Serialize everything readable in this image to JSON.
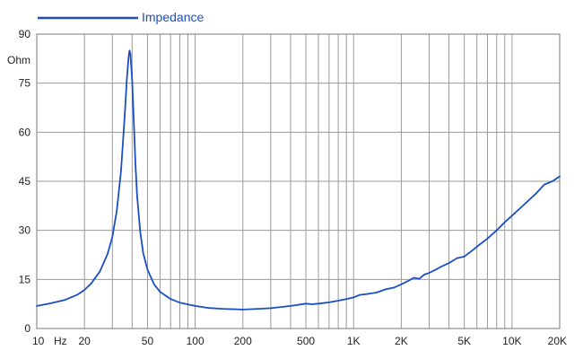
{
  "chart_data": {
    "type": "line",
    "title": "",
    "xlabel": "Hz",
    "ylabel": "Ohm",
    "x_scale": "log",
    "xlim": [
      10,
      20000
    ],
    "ylim": [
      0,
      90
    ],
    "grid": true,
    "legend_position": "top-left",
    "x_tick_labels": [
      {
        "value": 10,
        "label": "10"
      },
      {
        "value": 20,
        "label": "20"
      },
      {
        "value": 50,
        "label": "50"
      },
      {
        "value": 100,
        "label": "100"
      },
      {
        "value": 200,
        "label": "200"
      },
      {
        "value": 500,
        "label": "500"
      },
      {
        "value": 1000,
        "label": "1K"
      },
      {
        "value": 2000,
        "label": "2K"
      },
      {
        "value": 5000,
        "label": "5K"
      },
      {
        "value": 10000,
        "label": "10K"
      },
      {
        "value": 20000,
        "label": "20K"
      }
    ],
    "y_ticks": [
      0,
      15,
      30,
      45,
      60,
      75,
      90
    ],
    "series": [
      {
        "name": "Impedance",
        "color": "#1a4fc4",
        "x": [
          10,
          12,
          15,
          18,
          20,
          22,
          25,
          28,
          30,
          32,
          34,
          35,
          36,
          37,
          38,
          38.5,
          39,
          40,
          41,
          42,
          43,
          45,
          47,
          50,
          55,
          60,
          70,
          80,
          100,
          120,
          150,
          200,
          250,
          300,
          400,
          500,
          550,
          600,
          700,
          800,
          900,
          1000,
          1100,
          1200,
          1400,
          1600,
          1800,
          2000,
          2200,
          2400,
          2600,
          2800,
          3000,
          3300,
          3600,
          4000,
          4500,
          5000,
          5500,
          6000,
          7000,
          8000,
          9000,
          10000,
          12000,
          14000,
          16000,
          18000,
          20000
        ],
        "values": [
          6.9,
          7.6,
          8.7,
          10.3,
          11.8,
          13.7,
          17.4,
          22.8,
          28.0,
          36.0,
          48.0,
          57.0,
          66.0,
          76.0,
          83.0,
          85.0,
          84.0,
          76.0,
          63.0,
          50.0,
          40.5,
          29.5,
          23.0,
          18.0,
          13.5,
          11.2,
          9.0,
          7.9,
          6.9,
          6.3,
          6.0,
          5.8,
          6.0,
          6.2,
          6.9,
          7.6,
          7.4,
          7.6,
          8.0,
          8.5,
          9.0,
          9.5,
          10.3,
          10.5,
          11.0,
          12.0,
          12.5,
          13.5,
          14.5,
          15.5,
          15.2,
          16.5,
          17.0,
          18.0,
          19.0,
          20.0,
          21.5,
          22.0,
          23.5,
          25.0,
          27.5,
          30.0,
          32.5,
          34.5,
          38.0,
          41.0,
          44.0,
          45.0,
          46.5
        ]
      }
    ]
  }
}
